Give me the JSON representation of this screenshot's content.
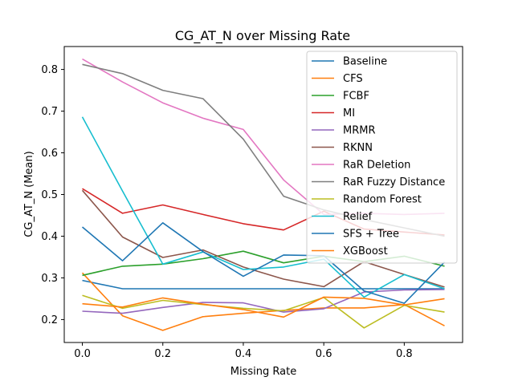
{
  "chart_data": {
    "type": "line",
    "title": "CG_AT_N over Missing Rate",
    "xlabel": "Missing Rate",
    "ylabel": "CG_AT_N (Mean)",
    "xlim": [
      -0.045,
      0.945
    ],
    "ylim": [
      0.145,
      0.855
    ],
    "xticks": [
      0.0,
      0.2,
      0.4,
      0.6,
      0.8
    ],
    "xtick_labels": [
      "0.0",
      "0.2",
      "0.4",
      "0.6",
      "0.8"
    ],
    "yticks": [
      0.2,
      0.3,
      0.4,
      0.5,
      0.6,
      0.7,
      0.8
    ],
    "ytick_labels": [
      "0.2",
      "0.3",
      "0.4",
      "0.5",
      "0.6",
      "0.7",
      "0.8"
    ],
    "grid": false,
    "legend_position": "top-right",
    "x": [
      0.0,
      0.1,
      0.2,
      0.3,
      0.4,
      0.5,
      0.6,
      0.7,
      0.8,
      0.9
    ],
    "series": [
      {
        "name": "Baseline",
        "color": "#1f77b4",
        "values": [
          0.294,
          0.274,
          0.274,
          0.274,
          0.274,
          0.274,
          0.274,
          0.274,
          0.274,
          0.274
        ]
      },
      {
        "name": "CFS",
        "color": "#ff7f0e",
        "values": [
          0.312,
          0.209,
          0.174,
          0.207,
          0.215,
          0.222,
          0.228,
          0.228,
          0.236,
          0.185
        ]
      },
      {
        "name": "FCBF",
        "color": "#2ca02c",
        "values": [
          0.306,
          0.328,
          0.333,
          0.346,
          0.364,
          0.336,
          0.352,
          0.339,
          0.352,
          0.328
        ]
      },
      {
        "name": "MI",
        "color": "#d62728",
        "values": [
          0.514,
          0.455,
          0.475,
          0.452,
          0.43,
          0.415,
          0.46,
          0.417,
          0.41,
          0.403
        ]
      },
      {
        "name": "MRMR",
        "color": "#9467bd",
        "values": [
          0.22,
          0.215,
          0.229,
          0.241,
          0.24,
          0.218,
          0.226,
          0.266,
          0.271,
          0.272
        ]
      },
      {
        "name": "RKNN",
        "color": "#8c564b",
        "values": [
          0.51,
          0.398,
          0.349,
          0.367,
          0.326,
          0.297,
          0.279,
          0.339,
          0.308,
          0.278
        ]
      },
      {
        "name": "RaR Deletion",
        "color": "#e377c2",
        "values": [
          0.825,
          0.77,
          0.72,
          0.683,
          0.656,
          0.535,
          0.452,
          0.455,
          0.452,
          0.455
        ]
      },
      {
        "name": "RaR Fuzzy Distance",
        "color": "#7f7f7f",
        "values": [
          0.812,
          0.79,
          0.75,
          0.73,
          0.633,
          0.496,
          0.463,
          0.44,
          0.42,
          0.4
        ]
      },
      {
        "name": "Random Forest",
        "color": "#bcbd22",
        "values": [
          0.258,
          0.227,
          0.246,
          0.236,
          0.227,
          0.221,
          0.253,
          0.18,
          0.234,
          0.218
        ]
      },
      {
        "name": "Relief",
        "color": "#17becf",
        "values": [
          0.686,
          0.508,
          0.333,
          0.362,
          0.32,
          0.326,
          0.345,
          0.254,
          0.308,
          0.274
        ]
      },
      {
        "name": "SFS + Tree",
        "color": "#1f77b4",
        "values": [
          0.422,
          0.341,
          0.432,
          0.363,
          0.304,
          0.355,
          0.353,
          0.269,
          0.239,
          0.338
        ]
      },
      {
        "name": "XGBoost",
        "color": "#ff7f0e",
        "values": [
          0.238,
          0.23,
          0.252,
          0.237,
          0.224,
          0.206,
          0.254,
          0.251,
          0.235,
          0.25
        ]
      }
    ]
  }
}
